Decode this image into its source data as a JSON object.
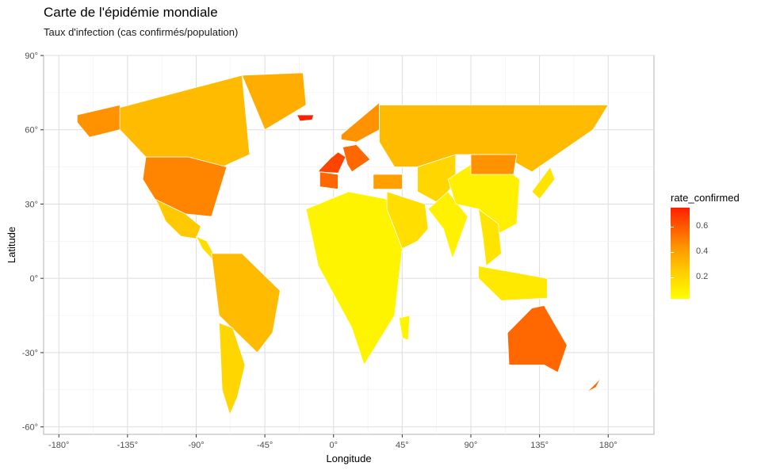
{
  "title": "Carte de l'épidémie mondiale",
  "subtitle": "Taux d'infection (cas confirmés/population)",
  "axes": {
    "xlabel": "Longitude",
    "ylabel": "Latitude",
    "x_ticks": [
      "-180°",
      "-135°",
      "-90°",
      "-45°",
      "0°",
      "45°",
      "90°",
      "135°",
      "180°"
    ],
    "y_ticks": [
      "90°",
      "60°",
      "30°",
      "0°",
      "-30°",
      "-60°"
    ]
  },
  "legend": {
    "title": "rate_confirmed",
    "labels": [
      "0.6",
      "0.4",
      "0.2"
    ],
    "colors": [
      "#ffff00",
      "#ffcc00",
      "#ff9900",
      "#ff6400",
      "#ff2000"
    ]
  },
  "chart_data": {
    "type": "heatmap",
    "projection": "equirectangular",
    "xlim": [
      -190,
      210
    ],
    "ylim": [
      -63,
      90
    ],
    "grid": true,
    "legend_position": "right",
    "regions": [
      {
        "lon": [
          -168,
          -140,
          -140,
          -160,
          -168
        ],
        "lat": [
          66,
          70,
          60,
          57,
          63
        ],
        "value": 0.4
      },
      {
        "lon": [
          -140,
          -60,
          -55,
          -80,
          -95,
          -123,
          -140
        ],
        "lat": [
          69,
          82,
          50,
          43,
          49,
          49,
          60
        ],
        "value": 0.25
      },
      {
        "lon": [
          -123,
          -95,
          -70,
          -80,
          -97,
          -117,
          -125
        ],
        "lat": [
          49,
          49,
          45,
          25,
          26,
          32,
          40
        ],
        "value": 0.45
      },
      {
        "lon": [
          -117,
          -97,
          -87,
          -90,
          -100,
          -110,
          -115
        ],
        "lat": [
          32,
          26,
          21,
          16,
          17,
          23,
          30
        ],
        "value": 0.2
      },
      {
        "lon": [
          -90,
          -83,
          -77,
          -80,
          -86
        ],
        "lat": [
          17,
          15,
          8,
          8,
          12
        ],
        "value": 0.12
      },
      {
        "lon": [
          -60,
          -20,
          -18,
          -45
        ],
        "lat": [
          82,
          83,
          70,
          60
        ],
        "value": 0.3
      },
      {
        "lon": [
          -24,
          -13,
          -14,
          -22
        ],
        "lat": [
          66,
          66,
          64,
          63.5
        ],
        "value": 0.75
      },
      {
        "lon": [
          -80,
          -60,
          -35,
          -40,
          -50,
          -75
        ],
        "lat": [
          10,
          10,
          -5,
          -22,
          -30,
          -15
        ],
        "value": 0.25
      },
      {
        "lon": [
          -75,
          -66,
          -58,
          -63,
          -68,
          -73
        ],
        "lat": [
          -18,
          -20,
          -35,
          -48,
          -55,
          -45
        ],
        "value": 0.15
      },
      {
        "lon": [
          -18,
          10,
          35,
          45,
          40,
          20,
          12,
          -10
        ],
        "lat": [
          28,
          35,
          32,
          12,
          -15,
          -35,
          -20,
          5
        ],
        "value": 0.04
      },
      {
        "lon": [
          -10,
          3,
          8,
          3,
          -2,
          -9
        ],
        "lat": [
          43,
          42.5,
          49,
          51,
          48.5,
          44
        ],
        "value": 0.65
      },
      {
        "lon": [
          -9,
          3,
          3,
          -9
        ],
        "lat": [
          43,
          42,
          36,
          37
        ],
        "value": 0.55
      },
      {
        "lon": [
          6,
          15,
          24,
          12,
          9
        ],
        "lat": [
          53,
          54,
          48,
          43,
          46
        ],
        "value": 0.55
      },
      {
        "lon": [
          5,
          30,
          30,
          15,
          5
        ],
        "lat": [
          58,
          71,
          60,
          55,
          56
        ],
        "value": 0.4
      },
      {
        "lon": [
          26,
          45,
          45,
          26
        ],
        "lat": [
          42,
          42,
          36,
          36
        ],
        "value": 0.35
      },
      {
        "lon": [
          30,
          180,
          170,
          130,
          110,
          80,
          55,
          40,
          30
        ],
        "lat": [
          70,
          70,
          60,
          43,
          50,
          50,
          45,
          45,
          55
        ],
        "value": 0.25
      },
      {
        "lon": [
          55,
          80,
          80,
          70,
          55
        ],
        "lat": [
          45,
          50,
          40,
          30,
          35
        ],
        "value": 0.15
      },
      {
        "lon": [
          35,
          60,
          62,
          55,
          45,
          35
        ],
        "lat": [
          35,
          30,
          20,
          15,
          12,
          28
        ],
        "value": 0.12
      },
      {
        "lon": [
          62,
          75,
          88,
          78,
          72
        ],
        "lat": [
          28,
          35,
          25,
          8,
          20
        ],
        "value": 0.05
      },
      {
        "lon": [
          75,
          100,
          122,
          120,
          108,
          95,
          80
        ],
        "lat": [
          40,
          50,
          40,
          22,
          18,
          28,
          30
        ],
        "value": 0.06
      },
      {
        "lon": [
          90,
          120,
          118,
          90
        ],
        "lat": [
          50,
          50,
          42,
          42
        ],
        "value": 0.4
      },
      {
        "lon": [
          95,
          108,
          110,
          100,
          98
        ],
        "lat": [
          28,
          22,
          10,
          5,
          16
        ],
        "value": 0.1
      },
      {
        "lon": [
          130,
          142,
          145,
          135
        ],
        "lat": [
          35,
          45,
          40,
          32
        ],
        "value": 0.1
      },
      {
        "lon": [
          95,
          140,
          140,
          110,
          95
        ],
        "lat": [
          5,
          0,
          -8,
          -9,
          0
        ],
        "value": 0.08
      },
      {
        "lon": [
          114,
          130,
          138,
          153,
          147,
          138,
          115
        ],
        "lat": [
          -22,
          -12,
          -11,
          -27,
          -38,
          -35,
          -35
        ],
        "value": 0.55
      },
      {
        "lon": [
          166,
          174,
          178,
          172
        ],
        "lat": [
          -46,
          -41,
          -37,
          -44
        ],
        "value": 0.55
      },
      {
        "lon": [
          43,
          50,
          49,
          45
        ],
        "lat": [
          -16,
          -15,
          -25,
          -24
        ],
        "value": 0.04
      }
    ]
  }
}
